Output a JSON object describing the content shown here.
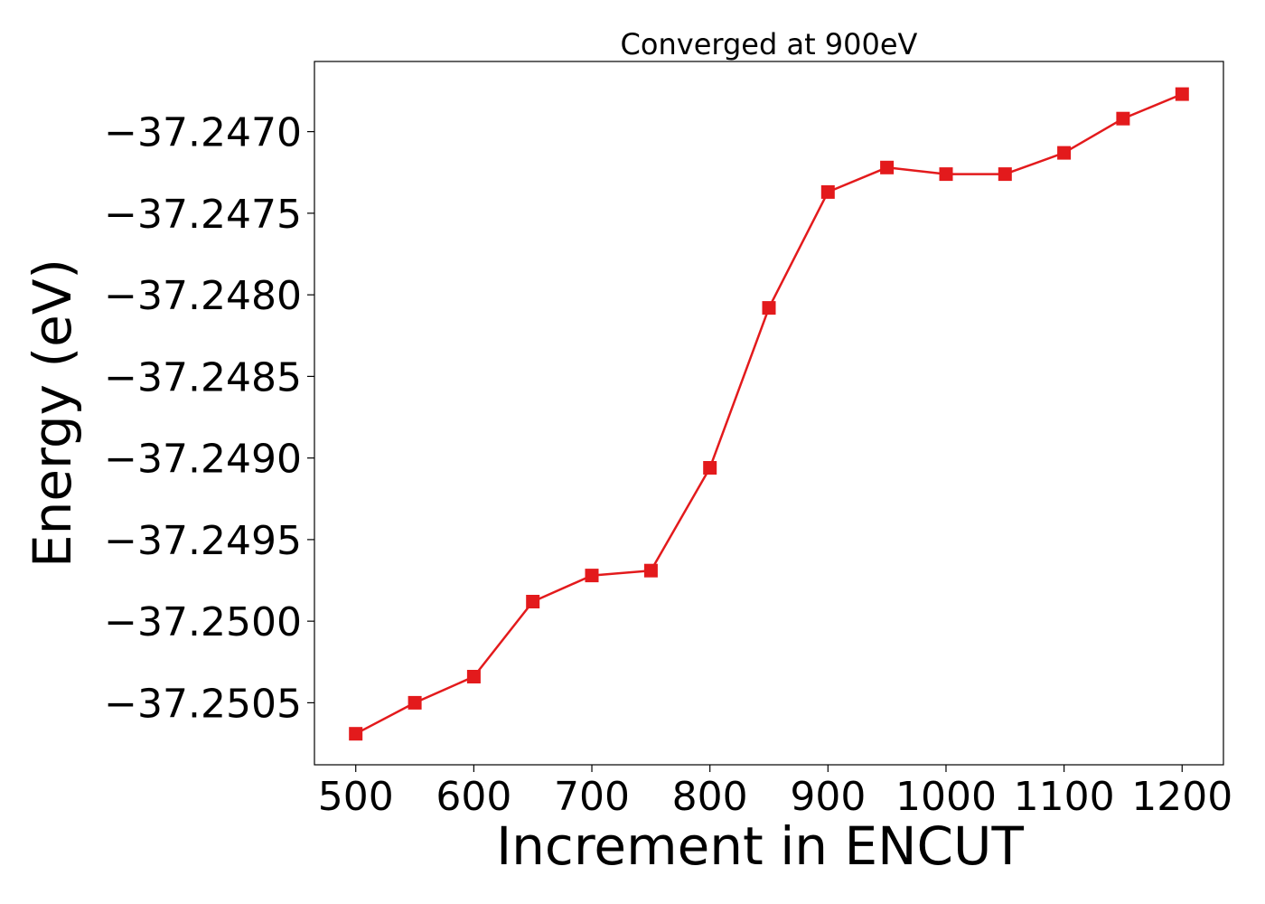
{
  "chart_data": {
    "type": "line",
    "title": "Converged at 900eV",
    "xlabel": "Increment in ENCUT",
    "ylabel": "Energy (eV)",
    "x": [
      500,
      550,
      600,
      650,
      700,
      750,
      800,
      850,
      900,
      950,
      1000,
      1050,
      1100,
      1150,
      1200
    ],
    "series": [
      {
        "values": [
          -37.25069,
          -37.2505,
          -37.25034,
          -37.24988,
          -37.24972,
          -37.24969,
          -37.24906,
          -37.24808,
          -37.24737,
          -37.24722,
          -37.24726,
          -37.24726,
          -37.24713,
          -37.24692,
          -37.24677
        ],
        "color": "#e31a1c",
        "marker": "square"
      }
    ],
    "xlim": [
      465,
      1235
    ],
    "ylim": [
      -37.25088,
      -37.24657
    ],
    "xticks": [
      500,
      600,
      700,
      800,
      900,
      1000,
      1100,
      1200
    ],
    "xtick_labels": [
      "500",
      "600",
      "700",
      "800",
      "900",
      "1000",
      "1100",
      "1200"
    ],
    "yticks": [
      -37.2505,
      -37.25,
      -37.2495,
      -37.249,
      -37.2485,
      -37.248,
      -37.2475,
      -37.247
    ],
    "ytick_labels": [
      "−37.2505",
      "−37.2500",
      "−37.2495",
      "−37.2490",
      "−37.2485",
      "−37.2480",
      "−37.2475",
      "−37.2470"
    ],
    "grid": false,
    "legend": "none"
  }
}
